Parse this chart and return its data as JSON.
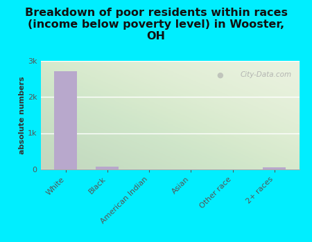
{
  "title": "Breakdown of poor residents within races\n(income below poverty level) in Wooster,\nOH",
  "categories": [
    "White",
    "Black",
    "American Indian",
    "Asian",
    "Other race",
    "2+ races"
  ],
  "values": [
    2700,
    80,
    5,
    5,
    5,
    65
  ],
  "bar_color": "#b8a8cc",
  "background_color": "#00eeff",
  "plot_bg_color": "#e8f0dc",
  "ylabel": "absolute numbers",
  "ylim": [
    0,
    3000
  ],
  "yticks": [
    0,
    1000,
    2000,
    3000
  ],
  "ytick_labels": [
    "0",
    "1k",
    "2k",
    "3k"
  ],
  "title_fontsize": 11.5,
  "axis_label_fontsize": 8,
  "tick_fontsize": 8,
  "watermark": "City-Data.com"
}
